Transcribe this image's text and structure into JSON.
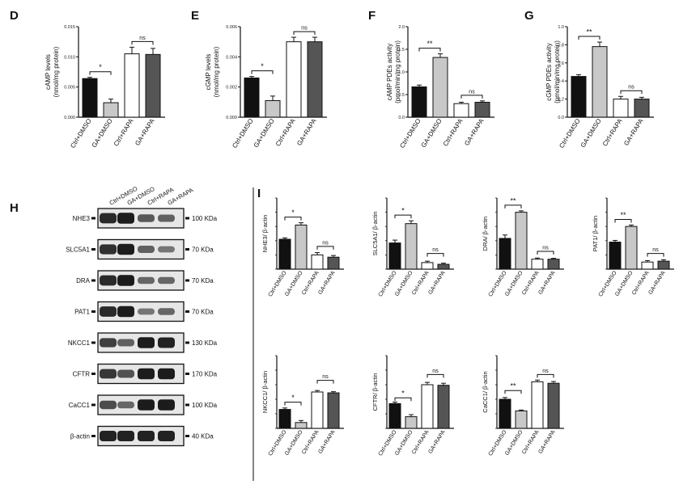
{
  "colors": {
    "ctrl_dmso": "#111111",
    "ga_dmso": "#c8c8c8",
    "ctrl_rapa": "#ffffff",
    "ga_rapa": "#555555",
    "outline": "#111111",
    "band": "#151515",
    "blot_bg": "#e6e6e6"
  },
  "conditions": [
    "Ctrl+DMSO",
    "GA+DMSO",
    "Ctrl+RAPA",
    "GA+RAPA"
  ],
  "panels_top": [
    {
      "letter": "D",
      "ylabel_lines": [
        "cAMP levels",
        "(nmol/mg protein)"
      ],
      "ylim": [
        0,
        0.015
      ],
      "ticks": [
        "0.000",
        "0.005",
        "0.010",
        "0.015"
      ],
      "tick_values": [
        0,
        0.005,
        0.01,
        0.015
      ],
      "values": [
        0.0064,
        0.0024,
        0.0105,
        0.0104
      ],
      "errors": [
        0.0002,
        0.0006,
        0.0011,
        0.001
      ],
      "sig_left": "*",
      "sig_right": "ns"
    },
    {
      "letter": "E",
      "ylabel_lines": [
        "cGMP levels",
        "(nmol/mg protein)"
      ],
      "ylim": [
        0,
        0.006
      ],
      "ticks": [
        "0.000",
        "0.002",
        "0.004",
        "0.006"
      ],
      "tick_values": [
        0,
        0.002,
        0.004,
        0.006
      ],
      "values": [
        0.0026,
        0.0011,
        0.005,
        0.005
      ],
      "errors": [
        0.0001,
        0.0003,
        0.0003,
        0.0003
      ],
      "sig_left": "*",
      "sig_right": "ns"
    },
    {
      "letter": "F",
      "ylabel_lines": [
        "cAMP PDEs activity",
        "(pmol/min/mg protein)"
      ],
      "ylim": [
        0,
        2.0
      ],
      "ticks": [
        "0.0",
        "0.5",
        "1.0",
        "1.5",
        "2.0"
      ],
      "tick_values": [
        0,
        0.5,
        1.0,
        1.5,
        2.0
      ],
      "values": [
        0.67,
        1.32,
        0.3,
        0.33
      ],
      "errors": [
        0.04,
        0.08,
        0.03,
        0.03
      ],
      "sig_left": "**",
      "sig_right": "ns"
    },
    {
      "letter": "G",
      "ylabel_lines": [
        "cGMP PDEs activity",
        "(pmol/min/mg protein)"
      ],
      "ylim": [
        0,
        1.0
      ],
      "ticks": [
        "0.0",
        "0.2",
        "0.4",
        "0.6",
        "0.8",
        "1.0"
      ],
      "tick_values": [
        0,
        0.2,
        0.4,
        0.6,
        0.8,
        1.0
      ],
      "values": [
        0.45,
        0.78,
        0.2,
        0.2
      ],
      "errors": [
        0.02,
        0.05,
        0.03,
        0.02
      ],
      "sig_left": "**",
      "sig_right": "ns"
    }
  ],
  "blot": {
    "letter": "H",
    "lanes": [
      "Ctrl+DMSO",
      "GA+DMSO",
      "Ctrl+RAPA",
      "GA+RAPA"
    ],
    "rows": [
      {
        "name": "NHE3",
        "size": "100 KDa",
        "intensities": [
          0.85,
          0.95,
          0.5,
          0.45
        ]
      },
      {
        "name": "SLC5A1",
        "size": "70 KDa",
        "intensities": [
          0.8,
          0.95,
          0.45,
          0.3
        ]
      },
      {
        "name": "DRA",
        "size": "70 KDa",
        "intensities": [
          0.85,
          0.95,
          0.4,
          0.4
        ]
      },
      {
        "name": "PAT1",
        "size": "70 KDa",
        "intensities": [
          0.85,
          0.95,
          0.3,
          0.4
        ]
      },
      {
        "name": "NKCC1",
        "size": "130 KDa",
        "intensities": [
          0.7,
          0.45,
          0.95,
          0.9
        ]
      },
      {
        "name": "CFTR",
        "size": "170 KDa",
        "intensities": [
          0.75,
          0.55,
          0.95,
          0.95
        ]
      },
      {
        "name": "CaCC1",
        "size": "100 KDa",
        "intensities": [
          0.6,
          0.4,
          0.95,
          0.95
        ]
      },
      {
        "name": "β-actin",
        "size": "40 KDa",
        "intensities": [
          0.9,
          0.9,
          0.9,
          0.9
        ]
      }
    ]
  },
  "panel_i_letter": "I",
  "panels_i": [
    {
      "ylabel": "NHE3/ β-actin",
      "ylim": [
        0,
        2.5
      ],
      "values": [
        1.05,
        1.55,
        0.5,
        0.42
      ],
      "errors": [
        0.05,
        0.08,
        0.08,
        0.06
      ],
      "sig_left": "*",
      "sig_right": "ns",
      "right_bracket_frac": 0.32
    },
    {
      "ylabel": "SLC5A1/ β-actin",
      "ylim": [
        0,
        2.5
      ],
      "values": [
        0.92,
        1.6,
        0.23,
        0.17
      ],
      "errors": [
        0.1,
        0.1,
        0.05,
        0.04
      ],
      "sig_left": "*",
      "sig_right": "ns",
      "right_bracket_frac": 0.22
    },
    {
      "ylabel": "DRA/ β-actin",
      "ylim": [
        0,
        2.5
      ],
      "values": [
        1.08,
        2.0,
        0.35,
        0.35
      ],
      "errors": [
        0.12,
        0.05,
        0.04,
        0.03
      ],
      "sig_left": "**",
      "sig_right": "ns",
      "right_bracket_frac": 0.25
    },
    {
      "ylabel": "PAT1/ β-actin",
      "ylim": [
        0,
        2.5
      ],
      "values": [
        0.95,
        1.5,
        0.25,
        0.28
      ],
      "errors": [
        0.06,
        0.05,
        0.05,
        0.05
      ],
      "sig_left": "**",
      "sig_right": "ns",
      "right_bracket_frac": 0.22
    },
    {
      "ylabel": "NKCC1/ β-actin",
      "ylim": [
        0,
        2.5
      ],
      "values": [
        0.65,
        0.2,
        1.25,
        1.22
      ],
      "errors": [
        0.05,
        0.07,
        0.05,
        0.04
      ],
      "sig_left": "*",
      "sig_right": "ns",
      "left_bracket_frac": 0.36,
      "right_bracket_frac": 0.66
    },
    {
      "ylabel": "CFTR/ β-actin",
      "ylim": [
        0,
        2.5
      ],
      "values": [
        0.85,
        0.4,
        1.5,
        1.48
      ],
      "errors": [
        0.05,
        0.07,
        0.08,
        0.07
      ],
      "sig_left": "*",
      "sig_right": "ns",
      "left_bracket_frac": 0.42,
      "right_bracket_frac": 0.74
    },
    {
      "ylabel": "CaCC1/ β-actin",
      "ylim": [
        0,
        2.5
      ],
      "values": [
        1.0,
        0.6,
        1.6,
        1.55
      ],
      "errors": [
        0.06,
        0.03,
        0.06,
        0.06
      ],
      "sig_left": "**",
      "sig_right": "ns",
      "left_bracket_frac": 0.52,
      "right_bracket_frac": 0.74
    }
  ],
  "chart_data": [
    {
      "type": "bar",
      "ylabel": "cAMP levels (nmol/mg protein)",
      "categories": [
        "Ctrl+DMSO",
        "GA+DMSO",
        "Ctrl+RAPA",
        "GA+RAPA"
      ],
      "values": [
        0.0064,
        0.0024,
        0.0105,
        0.0104
      ],
      "ylim": [
        0,
        0.015
      ]
    },
    {
      "type": "bar",
      "ylabel": "cGMP levels (nmol/mg protein)",
      "categories": [
        "Ctrl+DMSO",
        "GA+DMSO",
        "Ctrl+RAPA",
        "GA+RAPA"
      ],
      "values": [
        0.0026,
        0.0011,
        0.005,
        0.005
      ],
      "ylim": [
        0,
        0.006
      ]
    },
    {
      "type": "bar",
      "ylabel": "cAMP PDEs activity (pmol/min/mg protein)",
      "categories": [
        "Ctrl+DMSO",
        "GA+DMSO",
        "Ctrl+RAPA",
        "GA+RAPA"
      ],
      "values": [
        0.67,
        1.32,
        0.3,
        0.33
      ],
      "ylim": [
        0,
        2.0
      ]
    },
    {
      "type": "bar",
      "ylabel": "cGMP PDEs activity (pmol/min/mg protein)",
      "categories": [
        "Ctrl+DMSO",
        "GA+DMSO",
        "Ctrl+RAPA",
        "GA+RAPA"
      ],
      "values": [
        0.45,
        0.78,
        0.2,
        0.2
      ],
      "ylim": [
        0,
        1.0
      ]
    },
    {
      "type": "bar",
      "ylabel": "NHE3/ β-actin",
      "categories": [
        "Ctrl+DMSO",
        "GA+DMSO",
        "Ctrl+RAPA",
        "GA+RAPA"
      ],
      "values": [
        1.05,
        1.55,
        0.5,
        0.42
      ]
    },
    {
      "type": "bar",
      "ylabel": "SLC5A1/ β-actin",
      "categories": [
        "Ctrl+DMSO",
        "GA+DMSO",
        "Ctrl+RAPA",
        "GA+RAPA"
      ],
      "values": [
        0.92,
        1.6,
        0.23,
        0.17
      ]
    },
    {
      "type": "bar",
      "ylabel": "DRA/ β-actin",
      "categories": [
        "Ctrl+DMSO",
        "GA+DMSO",
        "Ctrl+RAPA",
        "GA+RAPA"
      ],
      "values": [
        1.08,
        2.0,
        0.35,
        0.35
      ]
    },
    {
      "type": "bar",
      "ylabel": "PAT1/ β-actin",
      "categories": [
        "Ctrl+DMSO",
        "GA+DMSO",
        "Ctrl+RAPA",
        "GA+RAPA"
      ],
      "values": [
        0.95,
        1.5,
        0.25,
        0.28
      ]
    },
    {
      "type": "bar",
      "ylabel": "NKCC1/ β-actin",
      "categories": [
        "Ctrl+DMSO",
        "GA+DMSO",
        "Ctrl+RAPA",
        "GA+RAPA"
      ],
      "values": [
        0.65,
        0.2,
        1.25,
        1.22
      ]
    },
    {
      "type": "bar",
      "ylabel": "CFTR/ β-actin",
      "categories": [
        "Ctrl+DMSO",
        "GA+DMSO",
        "Ctrl+RAPA",
        "GA+RAPA"
      ],
      "values": [
        0.85,
        0.4,
        1.5,
        1.48
      ]
    },
    {
      "type": "bar",
      "ylabel": "CaCC1/ β-actin",
      "categories": [
        "Ctrl+DMSO",
        "GA+DMSO",
        "Ctrl+RAPA",
        "GA+RAPA"
      ],
      "values": [
        1.0,
        0.6,
        1.6,
        1.55
      ]
    }
  ]
}
